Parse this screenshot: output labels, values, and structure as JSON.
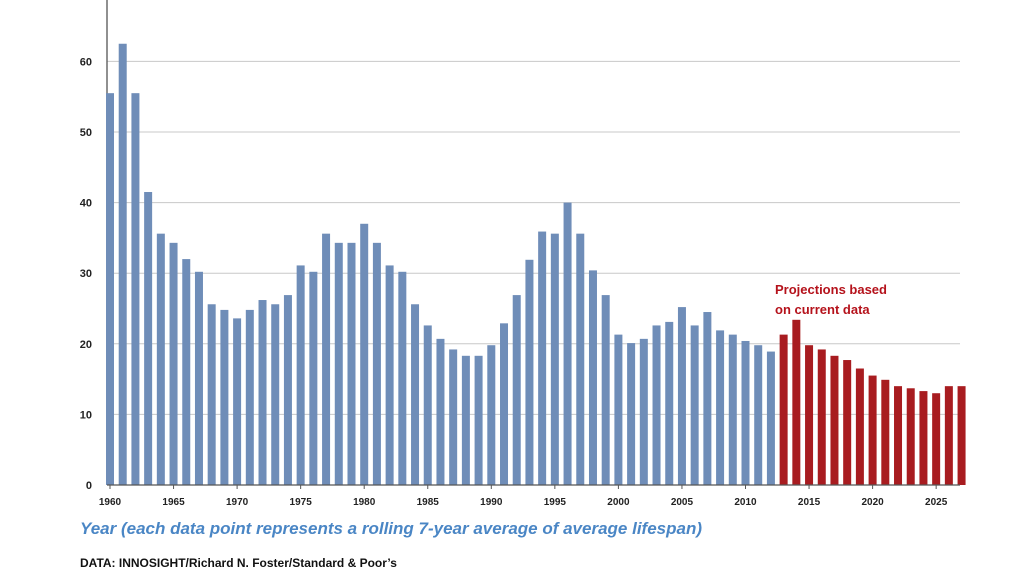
{
  "chart_data": {
    "type": "bar",
    "title": "",
    "xlabel": "Year (each data point represents a rolling 7-year average of average lifespan)",
    "ylabel": "",
    "ylim": [
      0,
      60
    ],
    "yticks": [
      0,
      10,
      20,
      30,
      40,
      50,
      60
    ],
    "xticks": [
      1960,
      1965,
      1970,
      1975,
      1980,
      1985,
      1990,
      1995,
      2000,
      2005,
      2010,
      2015,
      2020,
      2025
    ],
    "grid": true,
    "legend": "none",
    "series": [
      {
        "role": "historical",
        "color": "#6f8db8",
        "x": [
          1960,
          1961,
          1962,
          1963,
          1964,
          1965,
          1966,
          1967,
          1968,
          1969,
          1970,
          1971,
          1972,
          1973,
          1974,
          1975,
          1976,
          1977,
          1978,
          1979,
          1980,
          1981,
          1982,
          1983,
          1984,
          1985,
          1986,
          1987,
          1988,
          1989,
          1990,
          1991,
          1992,
          1993,
          1994,
          1995,
          1996,
          1997,
          1998,
          1999,
          2000,
          2001,
          2002,
          2003,
          2004,
          2005,
          2006,
          2007,
          2008,
          2009,
          2010,
          2011,
          2012
        ],
        "values": [
          55.5,
          62.5,
          55.5,
          41.5,
          35.6,
          34.3,
          32.0,
          30.2,
          25.6,
          24.8,
          23.6,
          24.8,
          26.2,
          25.6,
          26.9,
          31.1,
          30.2,
          35.6,
          34.3,
          34.3,
          37.0,
          34.3,
          31.1,
          30.2,
          25.6,
          22.6,
          20.7,
          19.2,
          18.3,
          18.3,
          19.8,
          22.9,
          26.9,
          31.9,
          35.9,
          35.6,
          40.0,
          35.6,
          30.4,
          26.9,
          21.3,
          20.1,
          20.7,
          22.6,
          23.1,
          25.2,
          22.6,
          24.5,
          21.9,
          21.3,
          20.4,
          19.8,
          18.9
        ]
      },
      {
        "role": "projection",
        "color": "#a81c20",
        "x": [
          2013,
          2014,
          2015,
          2016,
          2017,
          2018,
          2019,
          2020,
          2021,
          2022,
          2023,
          2024,
          2025,
          2026,
          2027
        ],
        "values": [
          21.3,
          23.4,
          19.8,
          19.2,
          18.3,
          17.7,
          16.5,
          15.5,
          14.9,
          14.0,
          13.7,
          13.3,
          13.0,
          14.0,
          14.0
        ]
      }
    ],
    "annotations": [
      {
        "lines": [
          "Projections based",
          "on current data"
        ],
        "color": "#b5121b"
      }
    ],
    "source": "DATA: INNOSIGHT/Richard N. Foster/Standard & Poor’s"
  }
}
